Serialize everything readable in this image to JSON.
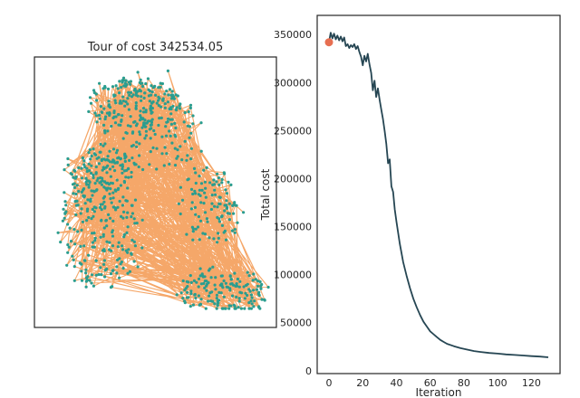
{
  "colors": {
    "tour_edges": "#f4a261",
    "cities": "#2a9d8f",
    "cost_line": "#264653",
    "start_marker": "#e76f51",
    "axes": "#262626"
  },
  "chart_data": [
    {
      "type": "scatter",
      "title": "Tour of cost 342534.05",
      "xlabel": "",
      "ylabel": "",
      "grid": false,
      "ticks_shown": false,
      "description_of_marks": "dense random city points connected by tour edges",
      "cities_regions": [
        {
          "cx": 0.27,
          "cy": 0.64,
          "rx": 0.17,
          "ry": 0.22,
          "share": 0.24
        },
        {
          "cx": 0.47,
          "cy": 0.28,
          "rx": 0.22,
          "ry": 0.16,
          "share": 0.16
        },
        {
          "cx": 0.78,
          "cy": 0.87,
          "rx": 0.18,
          "ry": 0.08,
          "share": 0.18
        },
        {
          "cx": 0.42,
          "cy": 0.16,
          "rx": 0.2,
          "ry": 0.1,
          "share": 0.18
        },
        {
          "cx": 0.28,
          "cy": 0.42,
          "rx": 0.15,
          "ry": 0.08,
          "share": 0.12
        },
        {
          "cx": 0.72,
          "cy": 0.55,
          "rx": 0.12,
          "ry": 0.15,
          "share": 0.12
        }
      ],
      "xlim": [
        0,
        1
      ],
      "ylim": [
        0,
        1
      ]
    },
    {
      "type": "line",
      "title": "",
      "xlabel": "Iteration",
      "ylabel": "Total cost",
      "grid": false,
      "xlim": [
        -7,
        137
      ],
      "ylim": [
        -3000,
        370000
      ],
      "xticks": [
        0,
        20,
        40,
        60,
        80,
        100,
        120
      ],
      "yticks": [
        0,
        50000,
        100000,
        150000,
        200000,
        250000,
        300000,
        350000
      ],
      "x": [
        0,
        1,
        2,
        3,
        4,
        5,
        6,
        7,
        8,
        9,
        10,
        11,
        12,
        13,
        14,
        15,
        16,
        17,
        18,
        19,
        20,
        21,
        22,
        23,
        24,
        25,
        26,
        27,
        28,
        29,
        30,
        31,
        32,
        33,
        34,
        35,
        36,
        37,
        38,
        39,
        40,
        42,
        44,
        46,
        48,
        50,
        52,
        54,
        56,
        58,
        60,
        62,
        64,
        66,
        68,
        70,
        74,
        78,
        82,
        86,
        90,
        95,
        100,
        105,
        110,
        115,
        120,
        125,
        130
      ],
      "y": [
        342000,
        352000,
        346000,
        351000,
        345000,
        349000,
        344000,
        348000,
        343000,
        347000,
        338000,
        340000,
        336000,
        339000,
        337000,
        340000,
        335000,
        338000,
        332000,
        327000,
        318000,
        328000,
        322000,
        330000,
        319000,
        310000,
        292000,
        302000,
        285000,
        294000,
        282000,
        272000,
        262000,
        250000,
        236000,
        216000,
        220000,
        192000,
        186000,
        168000,
        155000,
        132000,
        113000,
        99000,
        86000,
        75000,
        66000,
        58000,
        51000,
        46000,
        41000,
        38000,
        35000,
        32000,
        30000,
        28000,
        25500,
        23500,
        22000,
        20500,
        19500,
        18500,
        17800,
        17000,
        16400,
        15800,
        15200,
        14700,
        14000
      ],
      "start_point": {
        "x": 0,
        "y": 342000
      }
    }
  ]
}
